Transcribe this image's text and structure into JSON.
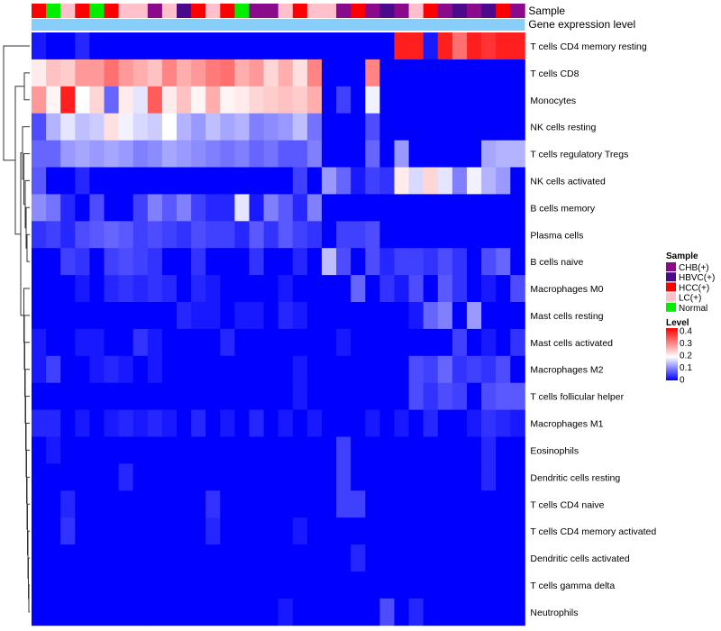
{
  "chart_data": {
    "type": "heatmap",
    "annotation_tracks": [
      {
        "key": "sample",
        "label": "Sample"
      },
      {
        "key": "expr",
        "label": "Gene expression level"
      }
    ],
    "sample_groups": [
      {
        "name": "CHB(+)",
        "color": "#8B0A8B"
      },
      {
        "name": "HBVC(+)",
        "color": "#4B0A8B"
      },
      {
        "name": "HCC(+)",
        "color": "#FF0000"
      },
      {
        "name": "LC(+)",
        "color": "#FFC0CB"
      },
      {
        "name": "Normal",
        "color": "#00EE00"
      }
    ],
    "column_samples": [
      "HCC(+)",
      "Normal",
      "LC(+)",
      "HCC(+)",
      "Normal",
      "HCC(+)",
      "LC(+)",
      "LC(+)",
      "CHB(+)",
      "LC(+)",
      "HBVC(+)",
      "HCC(+)",
      "LC(+)",
      "HCC(+)",
      "Normal",
      "CHB(+)",
      "CHB(+)",
      "LC(+)",
      "HCC(+)",
      "LC(+)",
      "LC(+)",
      "CHB(+)",
      "HCC(+)",
      "CHB(+)",
      "HBVC(+)",
      "CHB(+)",
      "LC(+)",
      "HCC(+)",
      "CHB(+)",
      "HBVC(+)",
      "CHB(+)",
      "HBVC(+)",
      "HCC(+)",
      "CHB(+)"
    ],
    "expression_track_color": "#87CEFA",
    "legend": {
      "sample_title": "Sample",
      "level_title": "Level",
      "level_ticks": [
        "0.4",
        "0.3",
        "0.2",
        "0.1",
        "0"
      ]
    },
    "color_scale": {
      "low": "#0000FF",
      "mid": "#FFFFFF",
      "high": "#FF0000",
      "min": 0,
      "mid_value": 0.2,
      "max": 0.45
    },
    "row_labels": [
      "T cells CD4 memory resting",
      "T cells CD8",
      "Monocytes",
      "NK cells resting",
      "T cells regulatory  Tregs",
      "NK cells activated",
      "B cells memory",
      "Plasma cells",
      "B cells naive",
      "Macrophages M0",
      "Mast cells resting",
      "Mast cells activated",
      "Macrophages M2",
      "T cells follicular helper",
      "Macrophages M1",
      "Eosinophils",
      "Dendritic cells resting",
      "T cells CD4 naive",
      "T cells CD4 memory activated",
      "Dendritic cells activated",
      "T cells gamma delta",
      "Neutrophils"
    ],
    "values": [
      [
        0.02,
        0.0,
        0.0,
        0.03,
        0.0,
        0.0,
        0.0,
        0.0,
        0.0,
        0.0,
        0.0,
        0.0,
        0.0,
        0.0,
        0.0,
        0.0,
        0.0,
        0.0,
        0.0,
        0.0,
        0.0,
        0.0,
        0.0,
        0.0,
        0.0,
        0.42,
        0.42,
        0.02,
        0.42,
        0.34,
        0.42,
        0.4,
        0.42,
        0.42
      ],
      [
        0.22,
        0.26,
        0.25,
        0.3,
        0.3,
        0.34,
        0.3,
        0.28,
        0.26,
        0.32,
        0.28,
        0.3,
        0.33,
        0.34,
        0.28,
        0.3,
        0.24,
        0.28,
        0.23,
        0.32,
        0.0,
        0.0,
        0.0,
        0.32,
        0.0,
        0.0,
        0.0,
        0.0,
        0.0,
        0.0,
        0.0,
        0.0,
        0.0,
        0.0
      ],
      [
        0.3,
        0.21,
        0.42,
        0.2,
        0.24,
        0.08,
        0.22,
        0.18,
        0.36,
        0.22,
        0.26,
        0.21,
        0.28,
        0.21,
        0.22,
        0.24,
        0.25,
        0.26,
        0.25,
        0.28,
        0.0,
        0.05,
        0.0,
        0.19,
        0.0,
        0.0,
        0.0,
        0.0,
        0.0,
        0.0,
        0.0,
        0.0,
        0.0,
        0.0
      ],
      [
        0.06,
        0.14,
        0.18,
        0.15,
        0.16,
        0.23,
        0.19,
        0.17,
        0.16,
        0.2,
        0.14,
        0.12,
        0.15,
        0.13,
        0.14,
        0.1,
        0.11,
        0.12,
        0.15,
        0.09,
        0.0,
        0.0,
        0.0,
        0.06,
        0.0,
        0.0,
        0.0,
        0.0,
        0.0,
        0.0,
        0.0,
        0.0,
        0.0,
        0.0
      ],
      [
        0.08,
        0.08,
        0.12,
        0.13,
        0.12,
        0.13,
        0.12,
        0.1,
        0.11,
        0.13,
        0.12,
        0.11,
        0.1,
        0.09,
        0.1,
        0.08,
        0.09,
        0.07,
        0.07,
        0.1,
        0.0,
        0.0,
        0.0,
        0.08,
        0.0,
        0.12,
        0.0,
        0.0,
        0.0,
        0.0,
        0.0,
        0.13,
        0.14,
        0.14
      ],
      [
        0.07,
        0.0,
        0.0,
        0.03,
        0.0,
        0.0,
        0.0,
        0.0,
        0.0,
        0.0,
        0.0,
        0.0,
        0.0,
        0.0,
        0.0,
        0.0,
        0.0,
        0.0,
        0.05,
        0.0,
        0.12,
        0.08,
        0.02,
        0.05,
        0.04,
        0.22,
        0.17,
        0.24,
        0.18,
        0.1,
        0.19,
        0.14,
        0.12,
        0.0
      ],
      [
        0.11,
        0.09,
        0.03,
        0.0,
        0.06,
        0.0,
        0.0,
        0.05,
        0.1,
        0.07,
        0.1,
        0.05,
        0.03,
        0.03,
        0.18,
        0.02,
        0.1,
        0.07,
        0.03,
        0.1,
        0.0,
        0.0,
        0.0,
        0.0,
        0.0,
        0.0,
        0.0,
        0.0,
        0.0,
        0.0,
        0.0,
        0.0,
        0.0,
        0.0
      ],
      [
        0.04,
        0.05,
        0.03,
        0.06,
        0.07,
        0.08,
        0.07,
        0.05,
        0.06,
        0.05,
        0.04,
        0.06,
        0.05,
        0.05,
        0.03,
        0.07,
        0.04,
        0.07,
        0.05,
        0.04,
        0.0,
        0.05,
        0.05,
        0.06,
        0.0,
        0.0,
        0.0,
        0.0,
        0.0,
        0.0,
        0.0,
        0.0,
        0.0,
        0.0
      ],
      [
        0.0,
        0.0,
        0.05,
        0.04,
        0.0,
        0.05,
        0.06,
        0.05,
        0.04,
        0.0,
        0.0,
        0.04,
        0.0,
        0.0,
        0.0,
        0.04,
        0.0,
        0.0,
        0.03,
        0.0,
        0.15,
        0.06,
        0.0,
        0.06,
        0.03,
        0.05,
        0.05,
        0.04,
        0.06,
        0.04,
        0.0,
        0.06,
        0.08,
        0.0
      ],
      [
        0.0,
        0.0,
        0.0,
        0.02,
        0.0,
        0.03,
        0.04,
        0.03,
        0.04,
        0.03,
        0.0,
        0.03,
        0.02,
        0.0,
        0.0,
        0.0,
        0.0,
        0.02,
        0.0,
        0.0,
        0.0,
        0.0,
        0.08,
        0.0,
        0.04,
        0.02,
        0.06,
        0.0,
        0.07,
        0.04,
        0.0,
        0.02,
        0.0,
        0.06
      ],
      [
        0.0,
        0.0,
        0.0,
        0.0,
        0.0,
        0.0,
        0.0,
        0.0,
        0.0,
        0.0,
        0.03,
        0.02,
        0.02,
        0.0,
        0.02,
        0.02,
        0.0,
        0.03,
        0.02,
        0.0,
        0.0,
        0.0,
        0.0,
        0.0,
        0.0,
        0.0,
        0.02,
        0.08,
        0.1,
        0.0,
        0.12,
        0.0,
        0.0,
        0.0
      ],
      [
        0.02,
        0.0,
        0.0,
        0.02,
        0.02,
        0.0,
        0.0,
        0.04,
        0.02,
        0.0,
        0.0,
        0.0,
        0.0,
        0.03,
        0.0,
        0.0,
        0.0,
        0.0,
        0.0,
        0.0,
        0.0,
        0.02,
        0.0,
        0.0,
        0.0,
        0.0,
        0.0,
        0.0,
        0.0,
        0.05,
        0.0,
        0.02,
        0.0,
        0.04
      ],
      [
        0.02,
        0.05,
        0.0,
        0.0,
        0.02,
        0.03,
        0.02,
        0.0,
        0.02,
        0.0,
        0.0,
        0.0,
        0.0,
        0.0,
        0.0,
        0.0,
        0.0,
        0.0,
        0.02,
        0.0,
        0.0,
        0.0,
        0.0,
        0.0,
        0.0,
        0.0,
        0.06,
        0.05,
        0.08,
        0.04,
        0.05,
        0.04,
        0.06,
        0.0
      ],
      [
        0.0,
        0.0,
        0.0,
        0.0,
        0.0,
        0.0,
        0.0,
        0.0,
        0.0,
        0.0,
        0.0,
        0.0,
        0.0,
        0.0,
        0.0,
        0.0,
        0.0,
        0.0,
        0.02,
        0.0,
        0.0,
        0.0,
        0.0,
        0.0,
        0.0,
        0.0,
        0.06,
        0.04,
        0.06,
        0.05,
        0.0,
        0.06,
        0.07,
        0.07
      ],
      [
        0.03,
        0.03,
        0.0,
        0.02,
        0.0,
        0.02,
        0.03,
        0.02,
        0.03,
        0.02,
        0.0,
        0.03,
        0.0,
        0.02,
        0.0,
        0.03,
        0.0,
        0.02,
        0.0,
        0.02,
        0.0,
        0.0,
        0.0,
        0.02,
        0.0,
        0.02,
        0.0,
        0.03,
        0.0,
        0.0,
        0.02,
        0.04,
        0.03,
        0.02
      ],
      [
        0.0,
        0.02,
        0.0,
        0.0,
        0.0,
        0.0,
        0.0,
        0.0,
        0.0,
        0.0,
        0.0,
        0.0,
        0.0,
        0.0,
        0.0,
        0.0,
        0.0,
        0.0,
        0.0,
        0.0,
        0.0,
        0.05,
        0.0,
        0.0,
        0.0,
        0.0,
        0.0,
        0.0,
        0.0,
        0.0,
        0.0,
        0.03,
        0.0,
        0.0
      ],
      [
        0.0,
        0.0,
        0.0,
        0.0,
        0.0,
        0.0,
        0.03,
        0.0,
        0.0,
        0.0,
        0.0,
        0.0,
        0.0,
        0.0,
        0.0,
        0.0,
        0.0,
        0.0,
        0.0,
        0.0,
        0.0,
        0.05,
        0.0,
        0.0,
        0.0,
        0.0,
        0.0,
        0.0,
        0.0,
        0.0,
        0.0,
        0.03,
        0.0,
        0.0
      ],
      [
        0.0,
        0.0,
        0.03,
        0.0,
        0.0,
        0.0,
        0.0,
        0.0,
        0.0,
        0.0,
        0.0,
        0.0,
        0.04,
        0.0,
        0.0,
        0.0,
        0.0,
        0.0,
        0.0,
        0.0,
        0.0,
        0.05,
        0.05,
        0.0,
        0.0,
        0.0,
        0.0,
        0.0,
        0.0,
        0.0,
        0.0,
        0.0,
        0.0,
        0.0
      ],
      [
        0.0,
        0.0,
        0.04,
        0.0,
        0.0,
        0.0,
        0.0,
        0.0,
        0.0,
        0.0,
        0.0,
        0.0,
        0.03,
        0.0,
        0.0,
        0.0,
        0.0,
        0.0,
        0.02,
        0.0,
        0.0,
        0.0,
        0.0,
        0.0,
        0.0,
        0.0,
        0.0,
        0.0,
        0.0,
        0.0,
        0.0,
        0.0,
        0.0,
        0.0
      ],
      [
        0.0,
        0.0,
        0.0,
        0.0,
        0.0,
        0.0,
        0.0,
        0.0,
        0.0,
        0.0,
        0.0,
        0.0,
        0.0,
        0.0,
        0.0,
        0.0,
        0.0,
        0.0,
        0.0,
        0.0,
        0.0,
        0.0,
        0.03,
        0.0,
        0.0,
        0.0,
        0.0,
        0.0,
        0.0,
        0.0,
        0.0,
        0.0,
        0.0,
        0.0
      ],
      [
        0.0,
        0.0,
        0.0,
        0.0,
        0.0,
        0.0,
        0.0,
        0.0,
        0.0,
        0.0,
        0.0,
        0.0,
        0.0,
        0.0,
        0.0,
        0.0,
        0.0,
        0.0,
        0.0,
        0.0,
        0.0,
        0.0,
        0.0,
        0.0,
        0.0,
        0.0,
        0.0,
        0.0,
        0.0,
        0.0,
        0.0,
        0.0,
        0.0,
        0.0
      ],
      [
        0.0,
        0.0,
        0.0,
        0.0,
        0.0,
        0.0,
        0.0,
        0.0,
        0.0,
        0.0,
        0.0,
        0.0,
        0.0,
        0.0,
        0.0,
        0.0,
        0.0,
        0.02,
        0.0,
        0.0,
        0.0,
        0.0,
        0.0,
        0.0,
        0.06,
        0.0,
        0.03,
        0.0,
        0.0,
        0.0,
        0.0,
        0.0,
        0.0,
        0.0
      ]
    ]
  }
}
